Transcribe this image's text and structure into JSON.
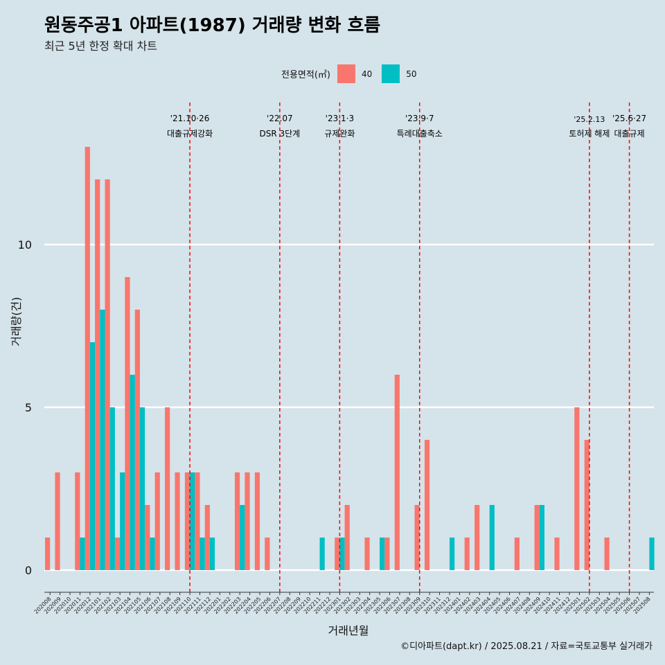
{
  "title": "원동주공1 아파트(1987) 거래량 변화 흐름",
  "subtitle": "최근 5년 한정 확대 차트",
  "caption": "©디아파트(dapt.kr) / 2025.08.21 / 자료=국토교통부 실거래가",
  "colors": {
    "background": "#d5e3ea",
    "series_40": "#f8766d",
    "series_50": "#00bfc4",
    "event_line": "#ff0000",
    "grid": "#ffffff"
  },
  "chart_data": {
    "type": "bar",
    "xlabel": "거래년월",
    "ylabel": "거래량(건)",
    "ylim": [
      0,
      13.5
    ],
    "yticks": [
      0,
      5,
      10
    ],
    "grid": true,
    "legend": {
      "title": "전용면적(㎡)",
      "placement": "top"
    },
    "categories": [
      "202008",
      "202009",
      "202010",
      "202011",
      "202012",
      "202101",
      "202102",
      "202103",
      "202104",
      "202105",
      "202106",
      "202107",
      "202108",
      "202109",
      "202110",
      "202111",
      "202112",
      "202201",
      "202202",
      "202203",
      "202204",
      "202205",
      "202206",
      "202207",
      "202208",
      "202209",
      "202210",
      "202211",
      "202212",
      "202301",
      "202302",
      "202303",
      "202304",
      "202305",
      "202306",
      "202307",
      "202308",
      "202309",
      "202310",
      "202311",
      "202312",
      "202401",
      "202402",
      "202403",
      "202404",
      "202405",
      "202406",
      "202407",
      "202408",
      "202409",
      "202410",
      "202411",
      "202412",
      "202501",
      "202502",
      "202503",
      "202504",
      "202505",
      "202506",
      "202507",
      "202508"
    ],
    "series": [
      {
        "name": "40",
        "values": [
          1,
          3,
          0,
          3,
          13,
          12,
          12,
          1,
          9,
          8,
          2,
          3,
          5,
          3,
          3,
          3,
          2,
          0,
          0,
          3,
          3,
          3,
          1,
          0,
          0,
          0,
          0,
          0,
          0,
          1,
          2,
          0,
          1,
          0,
          1,
          6,
          0,
          2,
          4,
          0,
          0,
          0,
          1,
          2,
          0,
          0,
          0,
          1,
          0,
          2,
          0,
          1,
          0,
          5,
          4,
          0,
          1,
          0,
          0,
          0,
          0
        ]
      },
      {
        "name": "50",
        "values": [
          0,
          0,
          0,
          1,
          7,
          8,
          5,
          3,
          6,
          5,
          1,
          0,
          0,
          0,
          3,
          1,
          1,
          0,
          0,
          2,
          0,
          0,
          0,
          0,
          0,
          0,
          0,
          1,
          0,
          1,
          0,
          0,
          0,
          1,
          0,
          0,
          0,
          0,
          0,
          0,
          1,
          0,
          0,
          0,
          2,
          0,
          0,
          0,
          0,
          2,
          0,
          0,
          0,
          0,
          0,
          0,
          0,
          0,
          0,
          0,
          1
        ]
      }
    ],
    "events": [
      {
        "label1": "'21.10·26",
        "label2": "대출규제강화",
        "category": "202110"
      },
      {
        "label1": "'22.07",
        "label2": "DSR 3단계",
        "category": "202207"
      },
      {
        "label1": "'23.1·3",
        "label2": "규제완화",
        "category": "202301"
      },
      {
        "label1": "'23.9·7",
        "label2": "특례대출축소",
        "category": "202309"
      },
      {
        "label1": "'25.2.13",
        "label2": "토허제 해제",
        "category": "202502"
      },
      {
        "label1": "'25.6·27",
        "label2": "대출규제",
        "category": "202506"
      }
    ]
  }
}
